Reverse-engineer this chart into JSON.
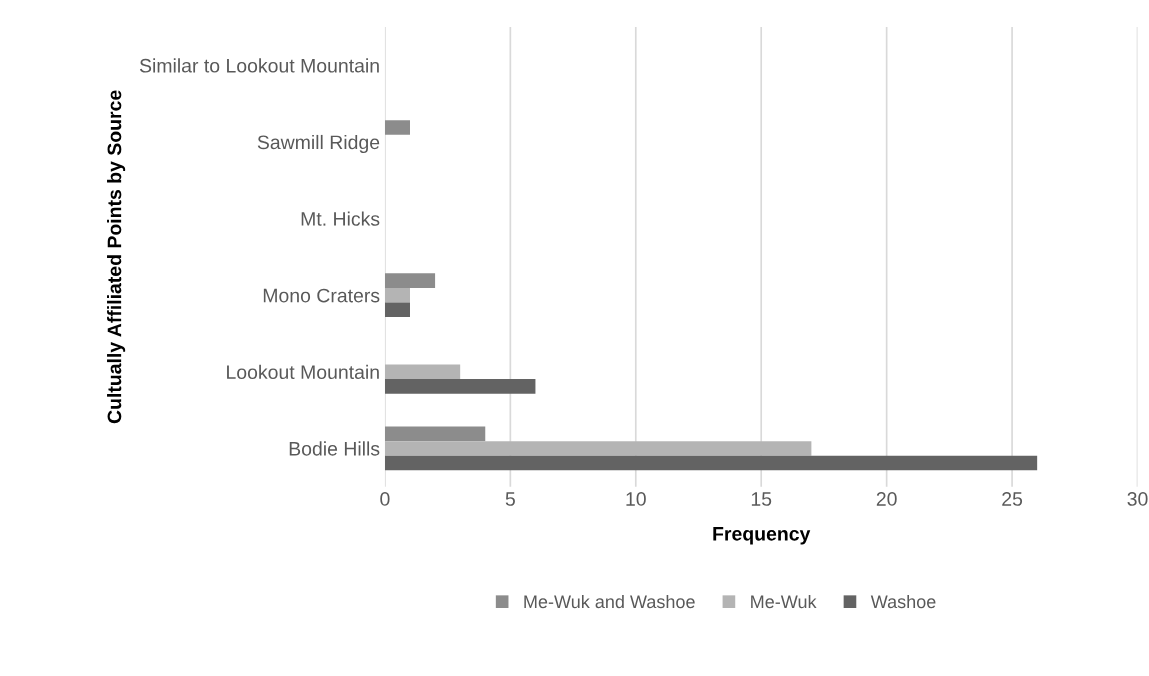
{
  "chart_data": {
    "type": "bar",
    "orientation": "horizontal",
    "xlabel": "Frequency",
    "ylabel": "Cultually Affiliated Points by Source",
    "categories": [
      "Similar to Lookout Mountain",
      "Sawmill Ridge",
      "Mt. Hicks",
      "Mono Craters",
      "Lookout Mountain",
      "Bodie Hills"
    ],
    "series": [
      {
        "name": "Me-Wuk and Washoe",
        "color": "#8c8c8c",
        "values": [
          0,
          1,
          0,
          2,
          0,
          4
        ]
      },
      {
        "name": "Me-Wuk",
        "color": "#b4b4b4",
        "values": [
          0,
          0,
          0,
          1,
          3,
          17
        ]
      },
      {
        "name": "Washoe",
        "color": "#636363",
        "values": [
          0,
          0,
          0,
          1,
          6,
          26
        ]
      }
    ],
    "xlim": [
      0,
      30
    ],
    "xticks": [
      0,
      5,
      10,
      15,
      20,
      25,
      30
    ],
    "grid": "x",
    "legend": "bottom"
  }
}
